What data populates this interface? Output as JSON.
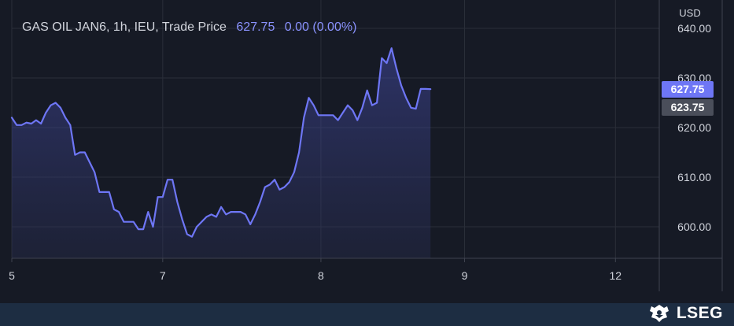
{
  "header": {
    "instrument": "GAS OIL JAN6, 1h, IEU, Trade Price",
    "last_price": "627.75",
    "change": "0.00 (0.00%)"
  },
  "currency_label": "USD",
  "badges": {
    "last": {
      "label": "627.75",
      "value": 627.75,
      "color": "#6e76f5"
    },
    "prev": {
      "label": "623.75",
      "value": 623.75,
      "color": "#4a4e5a"
    }
  },
  "brand": {
    "logo_text": "LSEG"
  },
  "colors": {
    "line": "#6e76f5",
    "background": "#161a25",
    "footer": "#1d2d42"
  },
  "chart_data": {
    "type": "area",
    "title": "GAS OIL JAN6, 1h, IEU, Trade Price",
    "ylim": [
      593,
      644
    ],
    "y_ticks": [
      600,
      610,
      620,
      630,
      640
    ],
    "y_tick_labels": [
      "600.00",
      "610.00",
      "620.00",
      "630.00",
      "640.00"
    ],
    "x_ticks": [
      {
        "label": "5",
        "x": 0
      },
      {
        "label": "7",
        "x": 31
      },
      {
        "label": "8",
        "x": 63.5
      },
      {
        "label": "9",
        "x": 93
      },
      {
        "label": "12",
        "x": 124
      }
    ],
    "xlim": [
      0,
      133
    ],
    "grid": true,
    "series": [
      {
        "values": [
          [
            0,
            622.0
          ],
          [
            1,
            620.5
          ],
          [
            2,
            620.5
          ],
          [
            3,
            621.0
          ],
          [
            4,
            620.8
          ],
          [
            5,
            621.5
          ],
          [
            6,
            620.8
          ],
          [
            7,
            623.0
          ],
          [
            8,
            624.5
          ],
          [
            9,
            625.0
          ],
          [
            10,
            624.0
          ],
          [
            11,
            622.0
          ],
          [
            12,
            620.5
          ],
          [
            13,
            614.5
          ],
          [
            14,
            615.0
          ],
          [
            15,
            615.0
          ],
          [
            16,
            613.0
          ],
          [
            17,
            611.0
          ],
          [
            18,
            607.0
          ],
          [
            19,
            607.0
          ],
          [
            20,
            607.0
          ],
          [
            21,
            603.5
          ],
          [
            22,
            603.0
          ],
          [
            23,
            601.0
          ],
          [
            24,
            601.0
          ],
          [
            25,
            601.0
          ],
          [
            26,
            599.5
          ],
          [
            27,
            599.5
          ],
          [
            28,
            603.0
          ],
          [
            29,
            600.0
          ],
          [
            30,
            606.0
          ],
          [
            31,
            606.0
          ],
          [
            32,
            609.5
          ],
          [
            33,
            609.5
          ],
          [
            34,
            605.0
          ],
          [
            35,
            601.5
          ],
          [
            36,
            598.5
          ],
          [
            37,
            598.0
          ],
          [
            38,
            600.0
          ],
          [
            39,
            601.0
          ],
          [
            40,
            602.0
          ],
          [
            41,
            602.5
          ],
          [
            42,
            602.0
          ],
          [
            43,
            604.0
          ],
          [
            44,
            602.5
          ],
          [
            45,
            603.0
          ],
          [
            46,
            603.0
          ],
          [
            47,
            603.0
          ],
          [
            48,
            602.5
          ],
          [
            49,
            600.5
          ],
          [
            50,
            602.5
          ],
          [
            51,
            605.0
          ],
          [
            52,
            608.0
          ],
          [
            53,
            608.5
          ],
          [
            54,
            609.5
          ],
          [
            55,
            607.5
          ],
          [
            56,
            608.0
          ],
          [
            57,
            609.0
          ],
          [
            58,
            611.0
          ],
          [
            59,
            615.0
          ],
          [
            60,
            622.0
          ],
          [
            61,
            626.0
          ],
          [
            62,
            624.5
          ],
          [
            63,
            622.5
          ],
          [
            64,
            622.5
          ],
          [
            65,
            622.5
          ],
          [
            66,
            622.5
          ],
          [
            67,
            621.5
          ],
          [
            68,
            623.0
          ],
          [
            69,
            624.5
          ],
          [
            70,
            623.5
          ],
          [
            71,
            621.5
          ],
          [
            72,
            624.0
          ],
          [
            73,
            627.5
          ],
          [
            74,
            624.5
          ],
          [
            75,
            625.0
          ],
          [
            76,
            634.0
          ],
          [
            77,
            633.0
          ],
          [
            78,
            636.0
          ],
          [
            79,
            632.0
          ],
          [
            80,
            628.5
          ],
          [
            81,
            626.0
          ],
          [
            82,
            624.0
          ],
          [
            83,
            623.8
          ],
          [
            84,
            627.8
          ],
          [
            85,
            627.8
          ],
          [
            86,
            627.75
          ]
        ]
      }
    ]
  }
}
